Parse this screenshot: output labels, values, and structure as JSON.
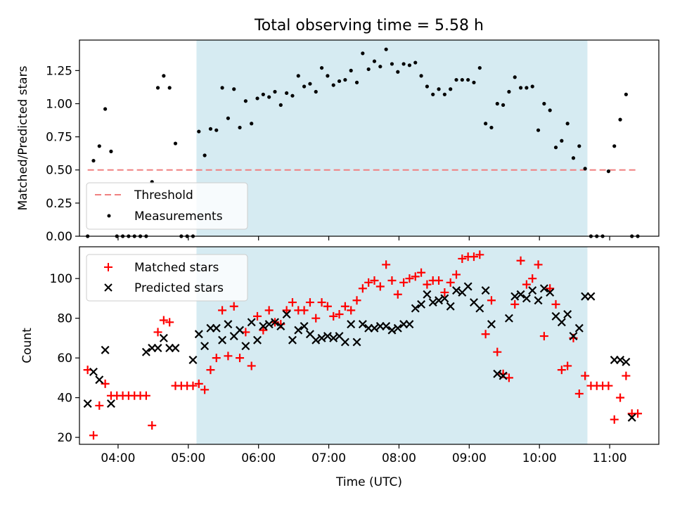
{
  "title": "Total observing time = 5.58 h",
  "chart_data": [
    {
      "type": "scatter",
      "ylabel": "Matched/Predicted stars",
      "xlabel": "",
      "xlim": [
        "03:27",
        "11:42"
      ],
      "ylim": [
        0,
        1.48
      ],
      "yticks": [
        0.0,
        0.25,
        0.5,
        0.75,
        1.0,
        1.25
      ],
      "ytick_labels": [
        "0.00",
        "0.25",
        "0.50",
        "0.75",
        "1.00",
        "1.25"
      ],
      "observing_window": [
        "05:07",
        "10:41"
      ],
      "threshold": {
        "name": "Threshold",
        "value": 0.5,
        "x_range": [
          "03:34",
          "11:22"
        ],
        "color": "#f08080"
      },
      "measurements": {
        "name": "Measurements",
        "color": "#000000",
        "x": [
          "03:34",
          "03:39",
          "03:44",
          "03:49",
          "03:54",
          "03:59",
          "04:04",
          "04:09",
          "04:14",
          "04:19",
          "04:24",
          "04:29",
          "04:34",
          "04:39",
          "04:44",
          "04:49",
          "04:54",
          "04:59",
          "05:04",
          "05:09",
          "05:14",
          "05:19",
          "05:24",
          "05:29",
          "05:34",
          "05:39",
          "05:44",
          "05:49",
          "05:54",
          "05:59",
          "06:04",
          "06:09",
          "06:14",
          "06:19",
          "06:24",
          "06:29",
          "06:34",
          "06:39",
          "06:44",
          "06:49",
          "06:54",
          "06:59",
          "07:04",
          "07:09",
          "07:14",
          "07:19",
          "07:24",
          "07:29",
          "07:34",
          "07:39",
          "07:44",
          "07:49",
          "07:54",
          "07:59",
          "08:04",
          "08:09",
          "08:14",
          "08:19",
          "08:24",
          "08:29",
          "08:34",
          "08:39",
          "08:44",
          "08:49",
          "08:54",
          "08:59",
          "09:04",
          "09:09",
          "09:14",
          "09:19",
          "09:24",
          "09:29",
          "09:34",
          "09:39",
          "09:44",
          "09:49",
          "09:54",
          "09:59",
          "10:04",
          "10:09",
          "10:14",
          "10:19",
          "10:24",
          "10:29",
          "10:34",
          "10:39",
          "10:44",
          "10:49",
          "10:54",
          "10:59",
          "11:04",
          "11:09",
          "11:14",
          "11:19",
          "11:24"
        ],
        "y": [
          0.0,
          0.57,
          0.68,
          0.96,
          0.64,
          0.0,
          0.0,
          0.0,
          0.0,
          0.0,
          0.0,
          0.41,
          1.12,
          1.21,
          1.12,
          0.7,
          0.0,
          0.0,
          0.0,
          0.79,
          0.61,
          0.81,
          0.8,
          1.12,
          0.89,
          1.11,
          0.82,
          1.02,
          0.85,
          1.04,
          1.07,
          1.05,
          1.09,
          0.99,
          1.08,
          1.06,
          1.21,
          1.13,
          1.15,
          1.09,
          1.27,
          1.21,
          1.14,
          1.17,
          1.18,
          1.25,
          1.16,
          1.38,
          1.26,
          1.32,
          1.28,
          1.41,
          1.3,
          1.24,
          1.3,
          1.29,
          1.31,
          1.21,
          1.13,
          1.07,
          1.11,
          1.07,
          1.11,
          1.18,
          1.18,
          1.18,
          1.16,
          1.27,
          0.85,
          0.82,
          1.0,
          0.99,
          1.09,
          1.2,
          1.12,
          1.12,
          1.13,
          0.8,
          1.0,
          0.95,
          0.67,
          0.72,
          0.85,
          0.59,
          0.68,
          0.51,
          0.0,
          0.0,
          0.0,
          0.49,
          0.68,
          0.88,
          1.07,
          0.0,
          0.0
        ]
      }
    },
    {
      "type": "scatter",
      "ylabel": "Count",
      "xlabel": "Time (UTC)",
      "xlim": [
        "03:27",
        "11:42"
      ],
      "ylim": [
        16.5,
        116
      ],
      "yticks": [
        20,
        40,
        60,
        80,
        100
      ],
      "ytick_labels": [
        "20",
        "40",
        "60",
        "80",
        "100"
      ],
      "xticks": [
        "04:00",
        "05:00",
        "06:00",
        "07:00",
        "08:00",
        "09:00",
        "10:00",
        "11:00"
      ],
      "xtick_labels": [
        "04:00",
        "05:00",
        "06:00",
        "07:00",
        "08:00",
        "09:00",
        "10:00",
        "11:00"
      ],
      "observing_window": [
        "05:07",
        "10:41"
      ],
      "legend_position": "upper-left",
      "series": [
        {
          "name": "Matched stars",
          "marker": "plus",
          "color": "#ff0000",
          "x": [
            "03:34",
            "03:39",
            "03:44",
            "03:49",
            "03:54",
            "03:59",
            "04:04",
            "04:09",
            "04:14",
            "04:19",
            "04:24",
            "04:29",
            "04:34",
            "04:39",
            "04:44",
            "04:49",
            "04:54",
            "04:59",
            "05:04",
            "05:09",
            "05:14",
            "05:19",
            "05:24",
            "05:29",
            "05:34",
            "05:39",
            "05:44",
            "05:49",
            "05:54",
            "05:59",
            "06:04",
            "06:09",
            "06:14",
            "06:19",
            "06:24",
            "06:29",
            "06:34",
            "06:39",
            "06:44",
            "06:49",
            "06:54",
            "06:59",
            "07:04",
            "07:09",
            "07:14",
            "07:19",
            "07:24",
            "07:29",
            "07:34",
            "07:39",
            "07:44",
            "07:49",
            "07:54",
            "07:59",
            "08:04",
            "08:09",
            "08:14",
            "08:19",
            "08:24",
            "08:29",
            "08:34",
            "08:39",
            "08:44",
            "08:49",
            "08:54",
            "08:59",
            "09:04",
            "09:09",
            "09:14",
            "09:19",
            "09:24",
            "09:29",
            "09:34",
            "09:39",
            "09:44",
            "09:49",
            "09:54",
            "09:59",
            "10:04",
            "10:09",
            "10:14",
            "10:19",
            "10:24",
            "10:29",
            "10:34",
            "10:39",
            "10:44",
            "10:49",
            "10:54",
            "10:59",
            "11:04",
            "11:09",
            "11:14",
            "11:19",
            "11:24"
          ],
          "y": [
            54,
            21,
            36,
            47,
            41,
            41,
            41,
            41,
            41,
            41,
            41,
            26,
            73,
            79,
            78,
            46,
            46,
            46,
            46,
            47,
            44,
            54,
            60,
            84,
            61,
            86,
            60,
            73,
            56,
            81,
            74,
            84,
            78,
            77,
            84,
            88,
            84,
            84,
            88,
            80,
            88,
            86,
            81,
            82,
            86,
            84,
            89,
            95,
            98,
            99,
            96,
            107,
            99,
            92,
            98,
            100,
            101,
            103,
            97,
            99,
            99,
            93,
            98,
            102,
            110,
            111,
            111,
            112,
            72,
            89,
            63,
            52,
            50,
            87,
            109,
            97,
            100,
            107,
            71,
            95,
            87,
            54,
            56,
            70,
            42,
            51,
            46,
            46,
            46,
            46,
            29,
            40,
            51,
            32,
            32
          ]
        },
        {
          "name": "Predicted stars",
          "marker": "x",
          "color": "#000000",
          "x": [
            "03:34",
            "03:39",
            "03:44",
            "03:49",
            "03:54",
            "04:24",
            "04:29",
            "04:34",
            "04:39",
            "04:44",
            "04:49",
            "05:04",
            "05:09",
            "05:14",
            "05:19",
            "05:24",
            "05:29",
            "05:34",
            "05:39",
            "05:44",
            "05:49",
            "05:54",
            "05:59",
            "06:04",
            "06:09",
            "06:14",
            "06:19",
            "06:24",
            "06:29",
            "06:34",
            "06:39",
            "06:44",
            "06:49",
            "06:54",
            "06:59",
            "07:04",
            "07:09",
            "07:14",
            "07:19",
            "07:24",
            "07:29",
            "07:34",
            "07:39",
            "07:44",
            "07:49",
            "07:54",
            "07:59",
            "08:04",
            "08:09",
            "08:14",
            "08:19",
            "08:24",
            "08:29",
            "08:34",
            "08:39",
            "08:44",
            "08:49",
            "08:54",
            "08:59",
            "09:04",
            "09:09",
            "09:14",
            "09:19",
            "09:24",
            "09:29",
            "09:34",
            "09:39",
            "09:44",
            "09:49",
            "09:54",
            "09:59",
            "10:04",
            "10:09",
            "10:14",
            "10:19",
            "10:24",
            "10:29",
            "10:34",
            "10:39",
            "10:44",
            "11:04",
            "11:09",
            "11:14",
            "11:19"
          ],
          "y": [
            37,
            53,
            49,
            64,
            37,
            63,
            65,
            65,
            70,
            65,
            65,
            59,
            72,
            66,
            75,
            75,
            69,
            77,
            71,
            74,
            66,
            78,
            69,
            76,
            77,
            78,
            76,
            82,
            69,
            74,
            76,
            72,
            69,
            70,
            71,
            70,
            71,
            68,
            77,
            68,
            77,
            75,
            75,
            76,
            76,
            74,
            75,
            77,
            77,
            85,
            87,
            92,
            88,
            89,
            90,
            86,
            94,
            93,
            96,
            88,
            85,
            94,
            77,
            52,
            51,
            80,
            91,
            92,
            90,
            94,
            89,
            95,
            93,
            81,
            78,
            82,
            71,
            75,
            91,
            91,
            59,
            59,
            58,
            30
          ]
        }
      ]
    }
  ]
}
